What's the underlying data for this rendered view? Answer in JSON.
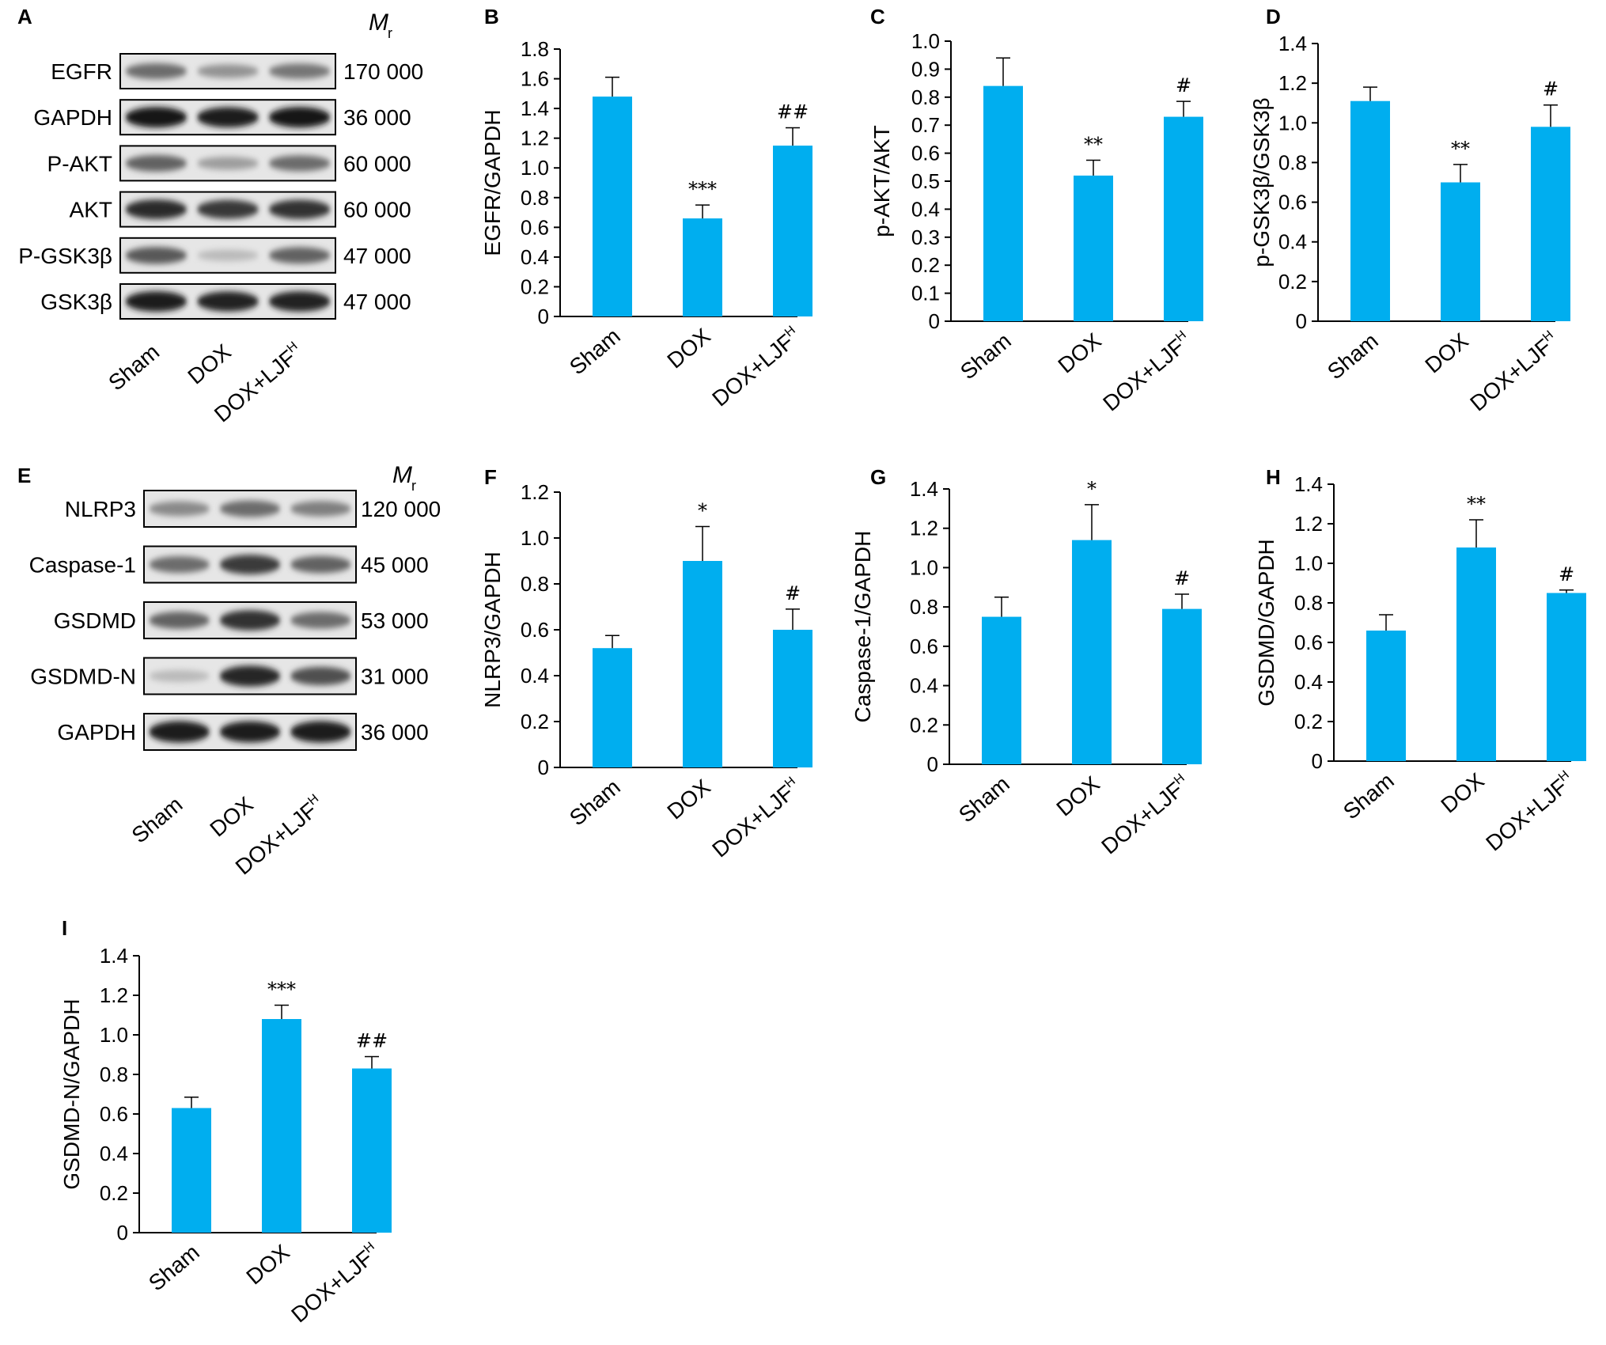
{
  "colors": {
    "bar": "#00AEEF",
    "axis": "#000000",
    "band": "#1a1a1a",
    "lane_bg": "#e6e6e6"
  },
  "blots": [
    {
      "letter": "A",
      "mr_label": "M",
      "mr_sub": "r",
      "rows": [
        {
          "label": "EGFR",
          "mr": "170 000",
          "intensity": [
            0.55,
            0.35,
            0.5
          ]
        },
        {
          "label": "GAPDH",
          "mr": "36 000",
          "intensity": [
            0.98,
            0.95,
            0.98
          ]
        },
        {
          "label": "P-AKT",
          "mr": "60 000",
          "intensity": [
            0.6,
            0.3,
            0.55
          ]
        },
        {
          "label": "AKT",
          "mr": "60 000",
          "intensity": [
            0.88,
            0.82,
            0.85
          ]
        },
        {
          "label": "P-GSK3β",
          "mr": "47 000",
          "intensity": [
            0.65,
            0.15,
            0.6
          ]
        },
        {
          "label": "GSK3β",
          "mr": "47 000",
          "intensity": [
            0.95,
            0.92,
            0.93
          ]
        }
      ],
      "lanes": [
        "Sham",
        "DOX",
        "DOX+LJF"
      ],
      "lane_sup": "H"
    },
    {
      "letter": "E",
      "mr_label": "M",
      "mr_sub": "r",
      "rows": [
        {
          "label": "NLRP3",
          "mr": "120 000",
          "intensity": [
            0.4,
            0.55,
            0.45
          ]
        },
        {
          "label": "Caspase-1",
          "mr": "45 000",
          "intensity": [
            0.55,
            0.8,
            0.6
          ]
        },
        {
          "label": "GSDMD",
          "mr": "53 000",
          "intensity": [
            0.6,
            0.85,
            0.55
          ]
        },
        {
          "label": "GSDMD-N",
          "mr": "31 000",
          "intensity": [
            0.15,
            0.9,
            0.7
          ]
        },
        {
          "label": "GAPDH",
          "mr": "36 000",
          "intensity": [
            0.97,
            0.95,
            0.97
          ]
        }
      ],
      "lanes": [
        "Sham",
        "DOX",
        "DOX+LJF"
      ],
      "lane_sup": "H"
    }
  ],
  "chart_data": [
    {
      "letter": "B",
      "type": "bar",
      "categories": [
        "Sham",
        "DOX",
        "DOX+LJF"
      ],
      "category_sup": [
        null,
        null,
        "H"
      ],
      "values": [
        1.48,
        0.66,
        1.15
      ],
      "errors": [
        0.13,
        0.09,
        0.12
      ],
      "annotations": [
        "",
        "***",
        "##"
      ],
      "ylabel": "EGFR/GAPDH",
      "ylim": [
        0,
        1.8
      ],
      "yticks": [
        "0",
        "0.2",
        "0.4",
        "0.6",
        "0.8",
        "1.0",
        "1.2",
        "1.4",
        "1.6",
        "1.8"
      ]
    },
    {
      "letter": "C",
      "type": "bar",
      "categories": [
        "Sham",
        "DOX",
        "DOX+LJF"
      ],
      "category_sup": [
        null,
        null,
        "H"
      ],
      "values": [
        0.84,
        0.52,
        0.73
      ],
      "errors": [
        0.1,
        0.055,
        0.055
      ],
      "annotations": [
        "",
        "**",
        "#"
      ],
      "ylabel": "p-AKT/AKT",
      "ylim": [
        0,
        1.0
      ],
      "yticks": [
        "0",
        "0.1",
        "0.2",
        "0.3",
        "0.4",
        "0.5",
        "0.6",
        "0.7",
        "0.8",
        "0.9",
        "1.0"
      ]
    },
    {
      "letter": "D",
      "type": "bar",
      "categories": [
        "Sham",
        "DOX",
        "DOX+LJF"
      ],
      "category_sup": [
        null,
        null,
        "H"
      ],
      "values": [
        1.11,
        0.7,
        0.98
      ],
      "errors": [
        0.07,
        0.09,
        0.11
      ],
      "annotations": [
        "",
        "**",
        "#"
      ],
      "ylabel": "p-GSK3β/GSK3β",
      "ylim": [
        0,
        1.4
      ],
      "yticks": [
        "0",
        "0.2",
        "0.4",
        "0.6",
        "0.8",
        "1.0",
        "1.2",
        "1.4"
      ]
    },
    {
      "letter": "F",
      "type": "bar",
      "categories": [
        "Sham",
        "DOX",
        "DOX+LJF"
      ],
      "category_sup": [
        null,
        null,
        "H"
      ],
      "values": [
        0.52,
        0.9,
        0.6
      ],
      "errors": [
        0.055,
        0.15,
        0.09
      ],
      "annotations": [
        "",
        "*",
        "#"
      ],
      "ylabel": "NLRP3/GAPDH",
      "ylim": [
        0,
        1.2
      ],
      "yticks": [
        "0",
        "0.2",
        "0.4",
        "0.6",
        "0.8",
        "1.0",
        "1.2"
      ]
    },
    {
      "letter": "G",
      "type": "bar",
      "categories": [
        "Sham",
        "DOX",
        "DOX+LJF"
      ],
      "category_sup": [
        null,
        null,
        "H"
      ],
      "values": [
        0.75,
        1.14,
        0.79
      ],
      "errors": [
        0.1,
        0.18,
        0.075
      ],
      "annotations": [
        "",
        "*",
        "#"
      ],
      "ylabel": "Caspase-1/GAPDH",
      "ylim": [
        0,
        1.4
      ],
      "yticks": [
        "0",
        "0.2",
        "0.4",
        "0.6",
        "0.8",
        "1.0",
        "1.2",
        "1.4"
      ]
    },
    {
      "letter": "H",
      "type": "bar",
      "categories": [
        "Sham",
        "DOX",
        "DOX+LJF"
      ],
      "category_sup": [
        null,
        null,
        "H"
      ],
      "values": [
        0.66,
        1.08,
        0.85
      ],
      "errors": [
        0.08,
        0.14,
        0.015
      ],
      "annotations": [
        "",
        "**",
        "#"
      ],
      "ylabel": "GSDMD/GAPDH",
      "ylim": [
        0,
        1.4
      ],
      "yticks": [
        "0",
        "0.2",
        "0.4",
        "0.6",
        "0.8",
        "1.0",
        "1.2",
        "1.4"
      ]
    },
    {
      "letter": "I",
      "type": "bar",
      "categories": [
        "Sham",
        "DOX",
        "DOX+LJF"
      ],
      "category_sup": [
        null,
        null,
        "H"
      ],
      "values": [
        0.63,
        1.08,
        0.83
      ],
      "errors": [
        0.055,
        0.07,
        0.06
      ],
      "annotations": [
        "",
        "***",
        "##"
      ],
      "ylabel": "GSDMD-N/GAPDH",
      "ylim": [
        0,
        1.4
      ],
      "yticks": [
        "0",
        "0.2",
        "0.4",
        "0.6",
        "0.8",
        "1.0",
        "1.2",
        "1.4"
      ]
    }
  ]
}
